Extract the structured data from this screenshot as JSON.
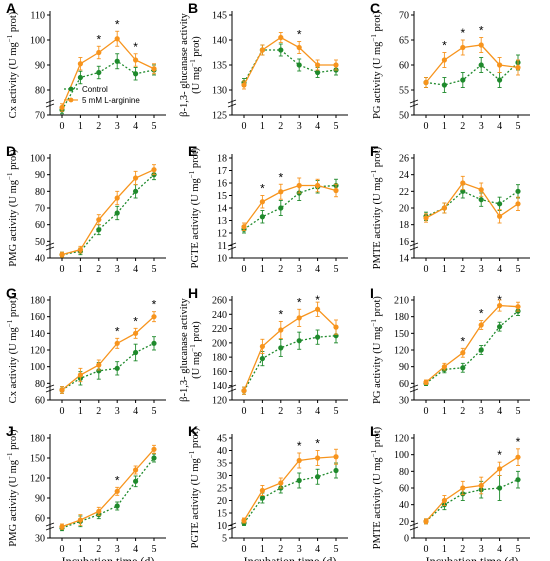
{
  "colors": {
    "control": "#1f8a2c",
    "treatment": "#f7941d",
    "axis": "#000000"
  },
  "legend": {
    "control": "Control",
    "treatment": "5 mM L-arginine"
  },
  "chart_data": [
    {
      "panel": "A",
      "type": "line",
      "ylabel": "Cx activity (U mg",
      "ylabel_sup": "−1",
      "ylabel_end": " prot)",
      "ylim": [
        70,
        110
      ],
      "yticks": [
        70,
        80,
        90,
        100,
        110
      ],
      "x": [
        0,
        1,
        2,
        3,
        4,
        5
      ],
      "xticks": [
        "0",
        "1",
        "2",
        "3",
        "4",
        "5"
      ],
      "series": [
        {
          "name": "Control",
          "values": [
            72,
            85,
            87,
            91.5,
            86.5,
            88
          ],
          "errors": [
            1.5,
            2.5,
            2.5,
            3,
            2.5,
            2
          ]
        },
        {
          "name": "5 mM L-arginine",
          "values": [
            73,
            90.5,
            95,
            100.5,
            92,
            88.5
          ],
          "errors": [
            1.5,
            2.5,
            2.5,
            3,
            2.5,
            2
          ]
        }
      ],
      "significance": [
        "",
        "",
        "*",
        "*",
        "*",
        ""
      ],
      "legend_shown": true
    },
    {
      "panel": "B",
      "type": "line",
      "ylabel": "β-1,3- glucanase activity",
      "ylabel2": "(U mg",
      "ylabel2_sup": "−1",
      "ylabel2_end": " prot)",
      "ylim": [
        125,
        145
      ],
      "yticks": [
        125,
        130,
        135,
        140,
        145
      ],
      "x": [
        0,
        1,
        2,
        3,
        4,
        5
      ],
      "xticks": [
        "0",
        "1",
        "2",
        "3",
        "4",
        "5"
      ],
      "series": [
        {
          "name": "Control",
          "values": [
            131.5,
            138,
            138,
            135,
            133.5,
            134
          ],
          "errors": [
            0.8,
            1,
            1.2,
            1.2,
            1,
            1
          ]
        },
        {
          "name": "5 mM L-arginine",
          "values": [
            131,
            138,
            140.5,
            138.5,
            135,
            135
          ],
          "errors": [
            0.8,
            1,
            1,
            1.2,
            1,
            1
          ]
        }
      ],
      "significance": [
        "",
        "",
        "",
        "*",
        "",
        ""
      ]
    },
    {
      "panel": "C",
      "type": "line",
      "ylabel": "PG activity (U mg",
      "ylabel_sup": "−1",
      "ylabel_end": " prot)",
      "ylim": [
        50,
        70
      ],
      "yticks": [
        50,
        55,
        60,
        65,
        70
      ],
      "x": [
        0,
        1,
        2,
        3,
        4,
        5
      ],
      "xticks": [
        "0",
        "1",
        "2",
        "3",
        "4",
        "5"
      ],
      "series": [
        {
          "name": "Control",
          "values": [
            56.5,
            56,
            57,
            60,
            57,
            60.5
          ],
          "errors": [
            1,
            1.5,
            1.5,
            1.5,
            1.5,
            1.5
          ]
        },
        {
          "name": "5 mM L-arginine",
          "values": [
            56.5,
            61,
            63.5,
            64,
            60,
            59.5
          ],
          "errors": [
            1,
            1.5,
            1.5,
            1.5,
            1.5,
            1.5
          ]
        }
      ],
      "significance": [
        "",
        "*",
        "*",
        "*",
        "",
        ""
      ]
    },
    {
      "panel": "D",
      "type": "line",
      "ylabel": "PMG activity (U mg",
      "ylabel_sup": "−1",
      "ylabel_end": " prot)",
      "ylim": [
        40,
        100
      ],
      "yticks": [
        40,
        50,
        60,
        70,
        80,
        90,
        100
      ],
      "x": [
        0,
        1,
        2,
        3,
        4,
        5
      ],
      "xticks": [
        "0",
        "1",
        "2",
        "3",
        "4",
        "5"
      ],
      "series": [
        {
          "name": "Control",
          "values": [
            42,
            44,
            57,
            67,
            80,
            90
          ],
          "errors": [
            1.5,
            2,
            3,
            4,
            4,
            3
          ]
        },
        {
          "name": "5 mM L-arginine",
          "values": [
            42,
            45,
            63,
            76,
            88,
            93
          ],
          "errors": [
            1.5,
            2,
            3,
            4,
            4,
            3
          ]
        }
      ],
      "significance": [
        "",
        "",
        "",
        "",
        "",
        ""
      ]
    },
    {
      "panel": "E",
      "type": "line",
      "ylabel": "PGTE activity (U mg",
      "ylabel_sup": "−1",
      "ylabel_end": " prot)",
      "ylim": [
        10,
        18
      ],
      "yticks": [
        10,
        11,
        12,
        13,
        14,
        15,
        16,
        17,
        18
      ],
      "x": [
        0,
        1,
        2,
        3,
        4,
        5
      ],
      "xticks": [
        "0",
        "1",
        "2",
        "3",
        "4",
        "5"
      ],
      "series": [
        {
          "name": "Control",
          "values": [
            12.3,
            13.3,
            14,
            15.2,
            15.7,
            15.8
          ],
          "errors": [
            0.3,
            0.5,
            0.6,
            0.6,
            0.5,
            0.5
          ]
        },
        {
          "name": "5 mM L-arginine",
          "values": [
            12.5,
            14.5,
            15.3,
            15.8,
            15.8,
            15.4
          ],
          "errors": [
            0.3,
            0.5,
            0.6,
            0.6,
            0.5,
            0.5
          ]
        }
      ],
      "significance": [
        "",
        "*",
        "*",
        "",
        "",
        ""
      ]
    },
    {
      "panel": "F",
      "type": "line",
      "ylabel": "PMTE activity (U mg",
      "ylabel_sup": "−1",
      "ylabel_end": " prot)",
      "ylim": [
        14,
        26
      ],
      "yticks": [
        14,
        16,
        18,
        20,
        22,
        24,
        26
      ],
      "x": [
        0,
        1,
        2,
        3,
        4,
        5
      ],
      "xticks": [
        "0",
        "1",
        "2",
        "3",
        "4",
        "5"
      ],
      "series": [
        {
          "name": "Control",
          "values": [
            19,
            20,
            22,
            21,
            20.5,
            22
          ],
          "errors": [
            0.5,
            0.6,
            0.8,
            0.8,
            0.8,
            0.8
          ]
        },
        {
          "name": "5 mM L-arginine",
          "values": [
            18.8,
            20,
            23,
            22.2,
            19,
            20.5
          ],
          "errors": [
            0.5,
            0.6,
            0.8,
            0.8,
            0.8,
            0.8
          ]
        }
      ],
      "significance": [
        "",
        "",
        "",
        "",
        "",
        ""
      ]
    },
    {
      "panel": "G",
      "type": "line",
      "ylabel": "Cx activity (U mg",
      "ylabel_sup": "−1",
      "ylabel_end": " prot)",
      "ylim": [
        60,
        180
      ],
      "yticks": [
        60,
        80,
        100,
        120,
        140,
        160,
        180
      ],
      "x": [
        0,
        1,
        2,
        3,
        4,
        5
      ],
      "xticks": [
        "0",
        "1",
        "2",
        "3",
        "4",
        "5"
      ],
      "series": [
        {
          "name": "Control",
          "values": [
            72,
            86,
            95,
            98,
            117,
            128
          ],
          "errors": [
            4,
            8,
            10,
            8,
            10,
            8
          ]
        },
        {
          "name": "5 mM L-arginine",
          "values": [
            72,
            90,
            102,
            128,
            140,
            160
          ],
          "errors": [
            4,
            8,
            6,
            6,
            6,
            6
          ]
        }
      ],
      "significance": [
        "",
        "",
        "",
        "*",
        "*",
        "*"
      ]
    },
    {
      "panel": "H",
      "type": "line",
      "ylabel": "β-1,3- glucanase activity",
      "ylabel2": "(U mg",
      "ylabel2_sup": "−1",
      "ylabel2_end": " prot)",
      "ylim": [
        120,
        260
      ],
      "yticks": [
        120,
        140,
        160,
        180,
        200,
        220,
        240,
        260
      ],
      "x": [
        0,
        1,
        2,
        3,
        4,
        5
      ],
      "xticks": [
        "0",
        "1",
        "2",
        "3",
        "4",
        "5"
      ],
      "series": [
        {
          "name": "Control",
          "values": [
            133,
            178,
            193,
            203,
            208,
            210
          ],
          "errors": [
            5,
            10,
            12,
            12,
            10,
            10
          ]
        },
        {
          "name": "5 mM L-arginine",
          "values": [
            133,
            195,
            218,
            235,
            247,
            222
          ],
          "errors": [
            5,
            10,
            12,
            12,
            10,
            10
          ]
        }
      ],
      "significance": [
        "",
        "",
        "*",
        "*",
        "*",
        ""
      ]
    },
    {
      "panel": "I",
      "type": "line",
      "ylabel": "PG activity (U mg",
      "ylabel_sup": "−1",
      "ylabel_end": " prot)",
      "ylim": [
        30,
        210
      ],
      "yticks": [
        30,
        60,
        90,
        120,
        150,
        180,
        210
      ],
      "x": [
        0,
        1,
        2,
        3,
        4,
        5
      ],
      "xticks": [
        "0",
        "1",
        "2",
        "3",
        "4",
        "5"
      ],
      "series": [
        {
          "name": "Control",
          "values": [
            60,
            85,
            88,
            120,
            162,
            190
          ],
          "errors": [
            4,
            6,
            8,
            8,
            8,
            8
          ]
        },
        {
          "name": "5 mM L-arginine",
          "values": [
            62,
            90,
            115,
            165,
            200,
            198
          ],
          "errors": [
            4,
            6,
            8,
            8,
            10,
            8
          ]
        }
      ],
      "significance": [
        "",
        "",
        "*",
        "*",
        "*",
        ""
      ]
    },
    {
      "panel": "J",
      "type": "line",
      "ylabel": "PMG activity (U mg",
      "ylabel_sup": "−1",
      "ylabel_end": " prot)",
      "ylim": [
        30,
        180
      ],
      "yticks": [
        30,
        60,
        90,
        120,
        150,
        180
      ],
      "x": [
        0,
        1,
        2,
        3,
        4,
        5
      ],
      "xticks": [
        "0",
        "1",
        "2",
        "3",
        "4",
        "5"
      ],
      "x_title": "Incubation time (d)",
      "series": [
        {
          "name": "Control",
          "values": [
            45,
            55,
            65,
            78,
            115,
            150
          ],
          "errors": [
            4,
            8,
            6,
            6,
            8,
            6
          ]
        },
        {
          "name": "5 mM L-arginine",
          "values": [
            47,
            57,
            70,
            100,
            132,
            163
          ],
          "errors": [
            4,
            8,
            6,
            6,
            6,
            6
          ]
        }
      ],
      "significance": [
        "",
        "",
        "",
        "*",
        "",
        ""
      ]
    },
    {
      "panel": "K",
      "type": "line",
      "ylabel": "PGTE activity (U mg",
      "ylabel_sup": "−1",
      "ylabel_end": " prot)",
      "ylim": [
        5,
        45
      ],
      "yticks": [
        5,
        10,
        15,
        20,
        25,
        30,
        35,
        40,
        45
      ],
      "x": [
        0,
        1,
        2,
        3,
        4,
        5
      ],
      "xticks": [
        "0",
        "1",
        "2",
        "3",
        "4",
        "5"
      ],
      "x_title": "Incubation time (d)",
      "series": [
        {
          "name": "Control",
          "values": [
            11,
            21,
            25,
            28,
            29.5,
            32
          ],
          "errors": [
            1,
            2,
            2,
            3,
            3,
            3
          ]
        },
        {
          "name": "5 mM L-arginine",
          "values": [
            12,
            24,
            27,
            36,
            37,
            37.5
          ],
          "errors": [
            1,
            2,
            2,
            3,
            3,
            3
          ]
        }
      ],
      "significance": [
        "",
        "",
        "",
        "*",
        "*",
        ""
      ]
    },
    {
      "panel": "L",
      "type": "line",
      "ylabel": "PMTE activity (U mg",
      "ylabel_sup": "−1",
      "ylabel_end": " prot)",
      "ylim": [
        0,
        120
      ],
      "yticks": [
        0,
        20,
        40,
        60,
        80,
        100,
        120
      ],
      "x": [
        0,
        1,
        2,
        3,
        4,
        5
      ],
      "xticks": [
        "0",
        "1",
        "2",
        "3",
        "4",
        "5"
      ],
      "x_title": "Incubation time (d)",
      "series": [
        {
          "name": "Control",
          "values": [
            20,
            40,
            53,
            58,
            60,
            70
          ],
          "errors": [
            3,
            6,
            8,
            10,
            15,
            10
          ]
        },
        {
          "name": "5 mM L-arginine",
          "values": [
            20,
            45,
            60,
            63,
            83,
            97
          ],
          "errors": [
            3,
            6,
            8,
            10,
            8,
            10
          ]
        }
      ],
      "significance": [
        "",
        "",
        "",
        "",
        "*",
        "*"
      ]
    }
  ]
}
